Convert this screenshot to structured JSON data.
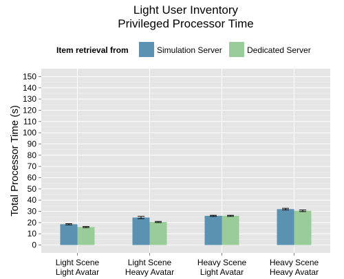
{
  "chart_data": {
    "type": "bar",
    "title": [
      "Light User Inventory",
      "Privileged Processor Time"
    ],
    "ylabel": "Total Processor Time (s)",
    "xlabel": "",
    "ylim": [
      -7,
      157
    ],
    "yticks": [
      0,
      10,
      20,
      30,
      40,
      50,
      60,
      70,
      80,
      90,
      100,
      110,
      120,
      130,
      140,
      150
    ],
    "categories": [
      [
        "Light Scene",
        "Light Avatar"
      ],
      [
        "Light Scene",
        "Heavy Avatar"
      ],
      [
        "Heavy Scene",
        "Light Avatar"
      ],
      [
        "Heavy Scene",
        "Heavy Avatar"
      ]
    ],
    "legend": {
      "title": "Item retrieval from",
      "position": "top"
    },
    "grid": true,
    "series": [
      {
        "name": "Simulation Server",
        "color": "#5b92b1",
        "values": [
          18.5,
          24.5,
          26,
          32
        ],
        "errors": [
          0.5,
          1.0,
          0.5,
          0.7
        ]
      },
      {
        "name": "Dedicated Server",
        "color": "#99cc99",
        "values": [
          16,
          20.5,
          26,
          30.5
        ],
        "errors": [
          0.5,
          0.5,
          0.5,
          0.7
        ]
      }
    ]
  }
}
